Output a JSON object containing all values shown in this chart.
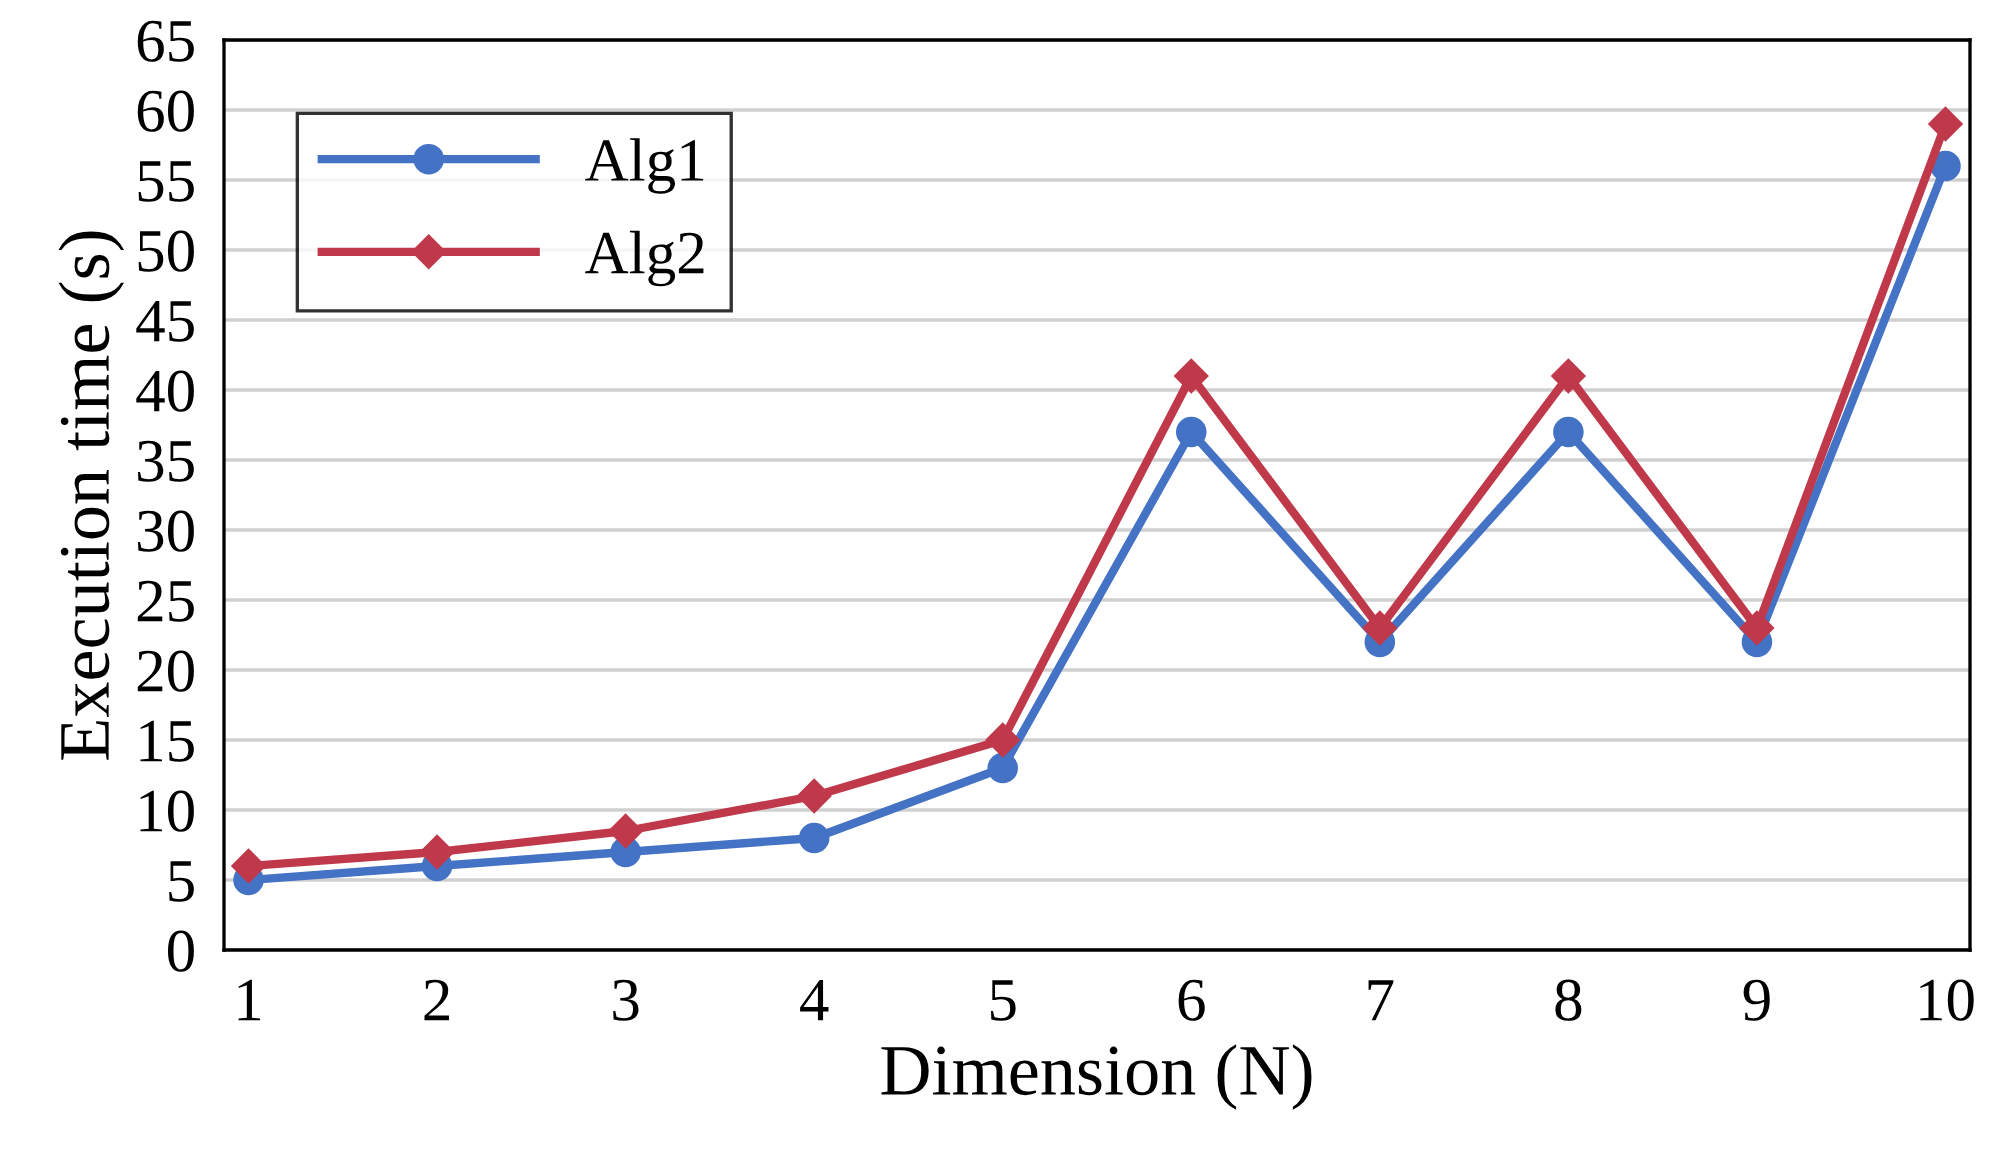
{
  "chart_data": {
    "type": "line",
    "xlabel": "Dimension (N)",
    "ylabel": "Execution time (s)",
    "categories": [
      "1",
      "2",
      "3",
      "4",
      "5",
      "6",
      "7",
      "8",
      "9",
      "10"
    ],
    "series": [
      {
        "name": "Alg1",
        "color": "#4472c4",
        "marker": "circle",
        "values": [
          5,
          6,
          7,
          8,
          13,
          37,
          22,
          37,
          22,
          56
        ]
      },
      {
        "name": "Alg2",
        "color": "#c0394b",
        "marker": "diamond",
        "values": [
          6,
          7,
          8.5,
          11,
          15,
          41,
          23,
          41,
          23,
          59
        ]
      }
    ],
    "ylim": [
      0,
      65
    ],
    "yticks": [
      0,
      5,
      10,
      15,
      20,
      25,
      30,
      35,
      40,
      45,
      50,
      55,
      60,
      65
    ],
    "grid": "y",
    "legend": "top left",
    "line_style": "solid"
  }
}
